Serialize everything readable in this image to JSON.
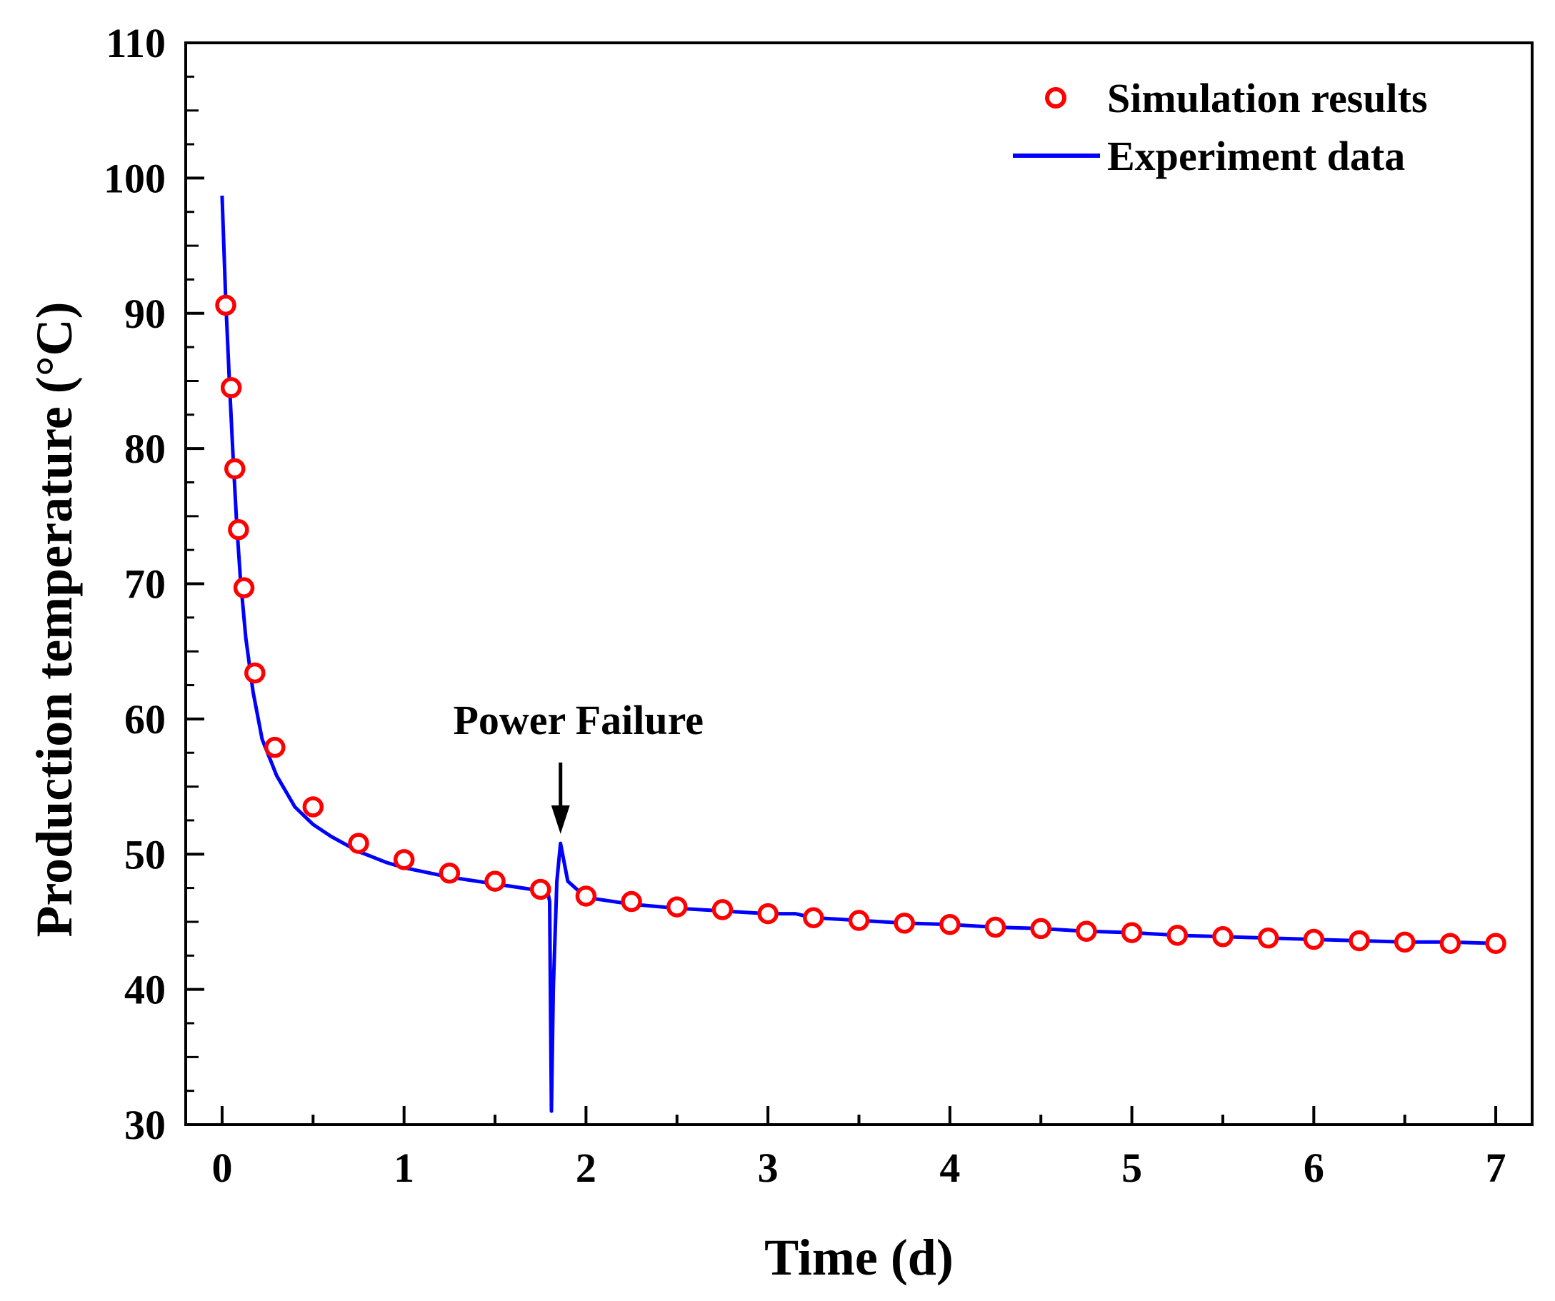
{
  "chart_data": {
    "type": "scatter+line",
    "title": "",
    "xlabel": "Time (d)",
    "ylabel": "Production temperature (°C)",
    "xlim": [
      -0.2,
      7.2
    ],
    "ylim": [
      30,
      110
    ],
    "xticks": [
      0,
      1,
      2,
      3,
      4,
      5,
      6,
      7
    ],
    "yticks": [
      30,
      40,
      50,
      60,
      70,
      80,
      90,
      100,
      110
    ],
    "legend_position": "top-right",
    "colors": {
      "simulation": "#ff0000",
      "experiment": "#0000ff",
      "axes": "#000000"
    },
    "series": [
      {
        "name": "Simulation results",
        "kind": "markers",
        "marker": "open-circle",
        "x": [
          0.02,
          0.05,
          0.07,
          0.09,
          0.12,
          0.18,
          0.29,
          0.5,
          0.75,
          1.0,
          1.25,
          1.5,
          1.75,
          2.0,
          2.25,
          2.5,
          2.75,
          3.0,
          3.25,
          3.5,
          3.75,
          4.0,
          4.25,
          4.5,
          4.75,
          5.0,
          5.25,
          5.5,
          5.75,
          6.0,
          6.25,
          6.5,
          6.75,
          7.0
        ],
        "y": [
          90.6,
          84.5,
          78.5,
          74.0,
          69.7,
          63.4,
          57.9,
          53.5,
          50.8,
          49.6,
          48.6,
          48.0,
          47.4,
          46.9,
          46.5,
          46.1,
          45.9,
          45.6,
          45.3,
          45.1,
          44.9,
          44.8,
          44.6,
          44.5,
          44.3,
          44.2,
          44.0,
          43.9,
          43.8,
          43.7,
          43.6,
          43.5,
          43.4,
          43.4
        ]
      },
      {
        "name": "Experiment data",
        "kind": "line",
        "x": [
          0.0,
          0.02,
          0.04,
          0.06,
          0.08,
          0.1,
          0.13,
          0.17,
          0.22,
          0.3,
          0.4,
          0.5,
          0.6,
          0.75,
          0.9,
          1.0,
          1.25,
          1.5,
          1.7,
          1.79,
          1.8,
          1.81,
          1.82,
          1.84,
          1.86,
          1.9,
          2.0,
          2.25,
          2.5,
          2.75,
          3.0,
          3.15,
          3.25,
          3.5,
          3.75,
          4.0,
          4.25,
          4.5,
          4.75,
          5.0,
          5.25,
          5.5,
          5.75,
          6.0,
          6.25,
          6.5,
          6.75,
          7.0
        ],
        "y": [
          98.7,
          91.0,
          85.0,
          79.5,
          74.5,
          70.5,
          66.0,
          62.0,
          58.5,
          55.8,
          53.5,
          52.2,
          51.3,
          50.2,
          49.4,
          49.0,
          48.3,
          47.8,
          47.4,
          47.2,
          46.5,
          31.0,
          40.0,
          48.0,
          50.8,
          48.0,
          46.8,
          46.3,
          46.0,
          45.8,
          45.6,
          45.6,
          45.3,
          45.1,
          44.9,
          44.8,
          44.6,
          44.5,
          44.3,
          44.2,
          44.0,
          43.9,
          43.8,
          43.7,
          43.6,
          43.5,
          43.5,
          43.4
        ]
      }
    ],
    "annotations": [
      {
        "text": "Power Failure",
        "x": 1.86,
        "y": 51.5,
        "arrow": "down"
      }
    ]
  }
}
